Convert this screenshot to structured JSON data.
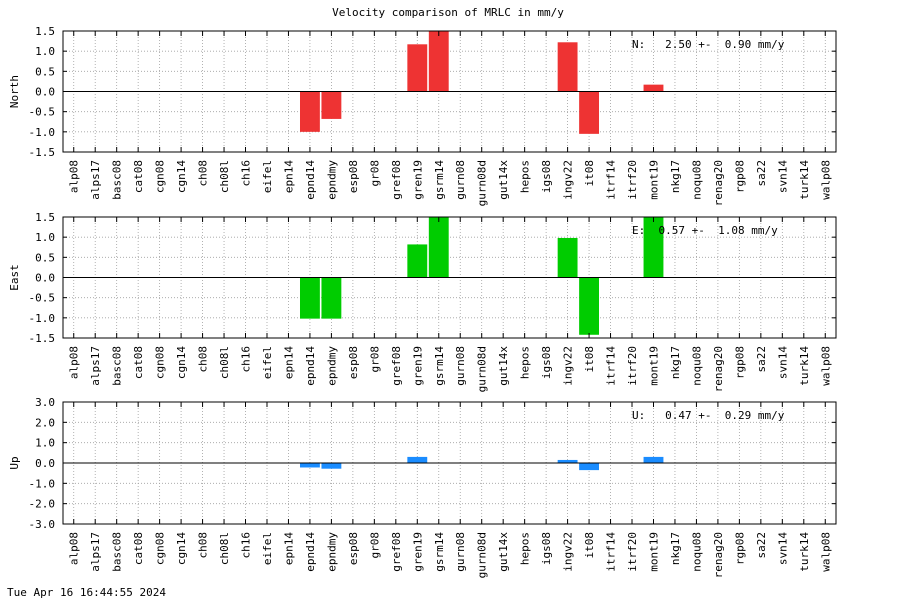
{
  "chart_data": {
    "type": "bar",
    "title": "Velocity comparison of MRLC in mm/y",
    "categories": [
      "alp08",
      "alps17",
      "basc08",
      "cat08",
      "cgn08",
      "cgn14",
      "ch08",
      "ch08l",
      "ch16",
      "eifel",
      "epn14",
      "epnd14",
      "epndmy",
      "esp08",
      "gr08",
      "gref08",
      "gren19",
      "gsrm14",
      "gurn08",
      "gurn08d",
      "gut14x",
      "hepos",
      "igs08",
      "ingv22",
      "it08",
      "itrf14",
      "itrf20",
      "mont19",
      "nkg17",
      "noqu08",
      "renag20",
      "rgp08",
      "sa22",
      "svn14",
      "turk14",
      "walp08"
    ],
    "grid": true,
    "panels": [
      {
        "ylabel": "North",
        "color": "#ee3333",
        "ylim": [
          -1.5,
          1.5
        ],
        "yticks": [
          "1.5",
          "1.0",
          "0.5",
          "0.0",
          "-0.5",
          "-1.0",
          "-1.5"
        ],
        "ytick_values": [
          1.5,
          1.0,
          0.5,
          0.0,
          -0.5,
          -1.0,
          -1.5
        ],
        "annotation": "N:   2.50 +-  0.90 mm/y",
        "values": [
          0,
          0,
          0,
          0,
          0,
          0,
          0,
          0,
          0,
          0,
          0,
          -1.0,
          -0.68,
          0,
          0,
          0,
          1.17,
          1.5,
          0,
          0,
          0,
          0,
          0,
          1.22,
          -1.05,
          0,
          0,
          0.17,
          0,
          0,
          0,
          0,
          0,
          0,
          0,
          0
        ]
      },
      {
        "ylabel": "East",
        "color": "#00cc00",
        "ylim": [
          -1.5,
          1.5
        ],
        "yticks": [
          "1.5",
          "1.0",
          "0.5",
          "0.0",
          "-0.5",
          "-1.0",
          "-1.5"
        ],
        "ytick_values": [
          1.5,
          1.0,
          0.5,
          0.0,
          -0.5,
          -1.0,
          -1.5
        ],
        "annotation": "E:  0.57 +-  1.08 mm/y",
        "values": [
          0,
          0,
          0,
          0,
          0,
          0,
          0,
          0,
          0,
          0,
          0,
          -1.02,
          -1.02,
          0,
          0,
          0,
          0.82,
          1.5,
          0,
          0,
          0,
          0,
          0,
          0.98,
          -1.42,
          0,
          0,
          1.5,
          0,
          0,
          0,
          0,
          0,
          0,
          0,
          0
        ]
      },
      {
        "ylabel": "Up",
        "color": "#1a8cff",
        "ylim": [
          -3.0,
          3.0
        ],
        "yticks": [
          "3.0",
          "2.0",
          "1.0",
          "0.0",
          "-1.0",
          "-2.0",
          "-3.0"
        ],
        "ytick_values": [
          3.0,
          2.0,
          1.0,
          0.0,
          -1.0,
          -2.0,
          -3.0
        ],
        "annotation": "U:   0.47 +-  0.29 mm/y",
        "values": [
          0,
          0,
          0,
          0,
          0,
          0,
          0,
          0,
          0,
          0,
          0,
          -0.22,
          -0.28,
          0,
          0,
          0,
          0.3,
          0,
          0,
          0,
          0,
          0,
          0,
          0.15,
          -0.35,
          0,
          0,
          0.3,
          0,
          0,
          0,
          0,
          0,
          0,
          0,
          0
        ]
      }
    ]
  },
  "footer": {
    "timestamp": "Tue Apr 16 16:44:55 2024"
  }
}
